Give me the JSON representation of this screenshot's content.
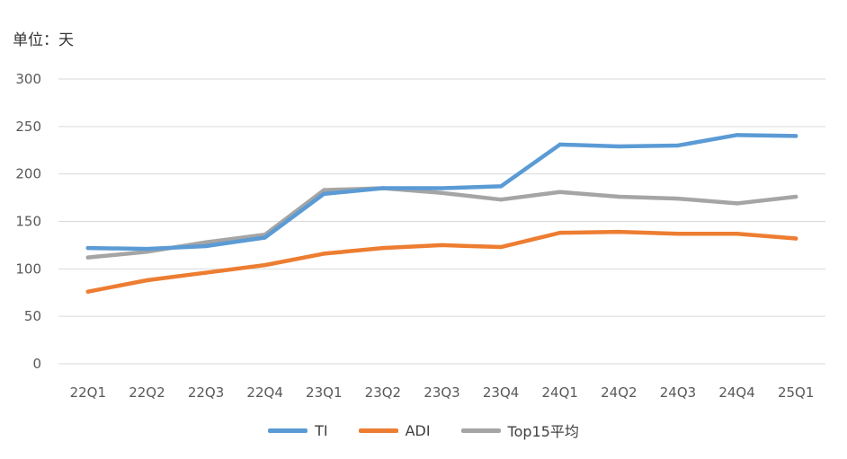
{
  "chart_data": {
    "type": "line",
    "unit_label": "单位：天",
    "categories": [
      "22Q1",
      "22Q2",
      "22Q3",
      "22Q4",
      "23Q1",
      "23Q2",
      "23Q3",
      "23Q4",
      "24Q1",
      "24Q2",
      "24Q3",
      "24Q4",
      "25Q1"
    ],
    "ylim": [
      0,
      300
    ],
    "yticks": [
      0,
      50,
      100,
      150,
      200,
      250,
      300
    ],
    "grid": true,
    "legend_position": "bottom",
    "series": [
      {
        "name": "TI",
        "color": "#5B9BD5",
        "values": [
          122,
          121,
          124,
          133,
          179,
          185,
          185,
          187,
          231,
          229,
          230,
          241,
          240
        ]
      },
      {
        "name": "ADI",
        "color": "#ED7D31",
        "values": [
          76,
          88,
          96,
          104,
          116,
          122,
          125,
          123,
          138,
          139,
          137,
          137,
          132
        ]
      },
      {
        "name": "Top15平均",
        "color": "#A5A5A5",
        "values": [
          112,
          118,
          128,
          136,
          183,
          185,
          180,
          173,
          181,
          176,
          174,
          169,
          176
        ]
      }
    ]
  }
}
